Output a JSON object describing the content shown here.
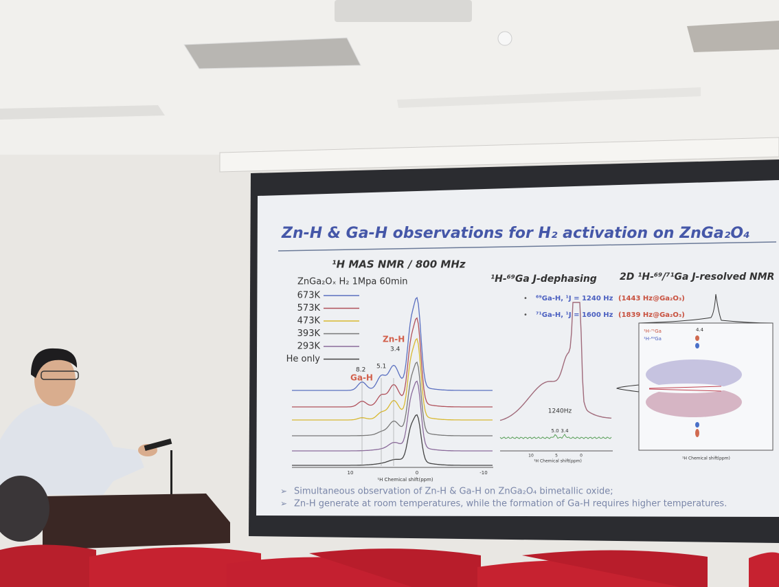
{
  "slide": {
    "title": "Zn-H & Ga-H observations for H₂ activation on ZnGa₂O₄",
    "left_panel": {
      "heading": "¹H MAS NMR / 800 MHz",
      "condition": "ZnGa₂Oₓ H₂ 1Mpa 60min",
      "legend": [
        "673K",
        "573K",
        "473K",
        "393K",
        "293K",
        "He only"
      ],
      "peak_labels": [
        "8.2",
        "5.1",
        "Ga-H",
        "Zn-H",
        "3.4"
      ],
      "x_ticks": [
        "10",
        "0",
        "-10"
      ],
      "x_label": "¹H Chemical shift(ppm)"
    },
    "middle_panel": {
      "heading": "¹H-⁶⁹Ga J-dephasing",
      "bullets": [
        {
          "main": "⁶⁹Ga-H, ¹J = 1240 Hz",
          "reference": "(1443 Hz@Ga₂O₃)"
        },
        {
          "main": "⁷¹Ga-H, ¹J = 1600 Hz",
          "reference": "(1839 Hz@Ga₂O₃)"
        }
      ],
      "annotations": [
        "1240Hz",
        "5.0",
        "3.4"
      ],
      "x_ticks": [
        "10",
        "5",
        "0"
      ],
      "x_label": "¹H Chemical shift(ppm)"
    },
    "right_panel": {
      "heading": "2D ¹H-⁶⁹/⁷¹Ga J-resolved NMR",
      "legend": [
        "¹H-⁷¹Ga",
        "¹H-⁶⁹Ga"
      ],
      "annotation": "4.4",
      "x_label": "¹H Chemical shift(ppm)"
    },
    "conclusions": [
      "Simultaneous observation of Zn-H & Ga-H on ZnGa₂O₄ bimetallic oxide;",
      "Zn-H generate at room temperatures, while the formation of Ga-H requires higher temperatures."
    ]
  }
}
